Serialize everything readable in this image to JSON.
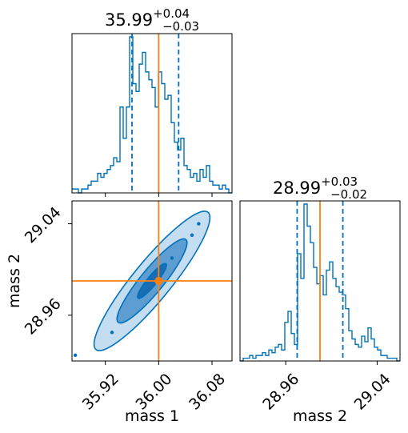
{
  "colors": {
    "contour": "#0072bd",
    "truth": "#ff7f0e",
    "fill_dark": "#1b6db3",
    "fill_mid": "#5d9dd2",
    "fill_light": "#c5ddf1"
  },
  "chart_data": {
    "type": "corner",
    "parameters": [
      {
        "name": "mass 1",
        "median": 35.99,
        "err_plus": 0.04,
        "err_minus": 0.03,
        "title": {
          "main": "35.99",
          "sup": "+0.04",
          "sub": "−0.03"
        },
        "truth": 36.0,
        "quantiles": [
          35.96,
          36.03
        ],
        "range": [
          35.87,
          36.11
        ],
        "ticks": [
          35.92,
          36.0,
          36.08
        ],
        "tick_labels": [
          "35.92",
          "36.00",
          "36.08"
        ],
        "hist_bins": [
          1,
          1,
          0,
          1,
          1,
          2,
          3,
          3,
          5,
          4,
          5,
          6,
          7,
          9,
          8,
          22,
          14,
          22,
          40,
          28,
          26,
          33,
          36,
          31,
          29,
          27,
          22,
          31,
          28,
          24,
          25,
          18,
          13,
          11,
          14,
          7,
          6,
          4,
          5,
          3,
          6,
          4,
          7,
          3,
          2,
          2,
          1,
          2,
          1,
          0
        ]
      },
      {
        "name": "mass 2",
        "median": 28.99,
        "err_plus": 0.03,
        "err_minus": 0.02,
        "title": {
          "main": "28.99",
          "sup": "+0.03",
          "sub": "−0.02"
        },
        "truth": 28.99,
        "quantiles": [
          28.97,
          29.01
        ],
        "range": [
          28.92,
          29.06
        ],
        "ticks": [
          28.96,
          29.04
        ],
        "tick_labels": [
          "28.96",
          "29.04"
        ],
        "hist_bins": [
          0,
          1,
          1,
          2,
          1,
          2,
          2,
          3,
          2,
          4,
          3,
          5,
          6,
          4,
          14,
          18,
          10,
          6,
          39,
          30,
          57,
          49,
          43,
          34,
          28,
          31,
          24,
          33,
          36,
          30,
          27,
          25,
          24,
          19,
          11,
          8,
          6,
          5,
          9,
          7,
          12,
          8,
          5,
          4,
          2,
          2,
          1,
          1,
          1,
          0
        ]
      }
    ],
    "joint": {
      "x": "mass 1",
      "y": "mass 2",
      "correlation": 0.985,
      "center": [
        35.99,
        28.99
      ],
      "truth": [
        36.0,
        28.99
      ],
      "sigma_x": 0.035,
      "sigma_y": 0.025
    }
  }
}
